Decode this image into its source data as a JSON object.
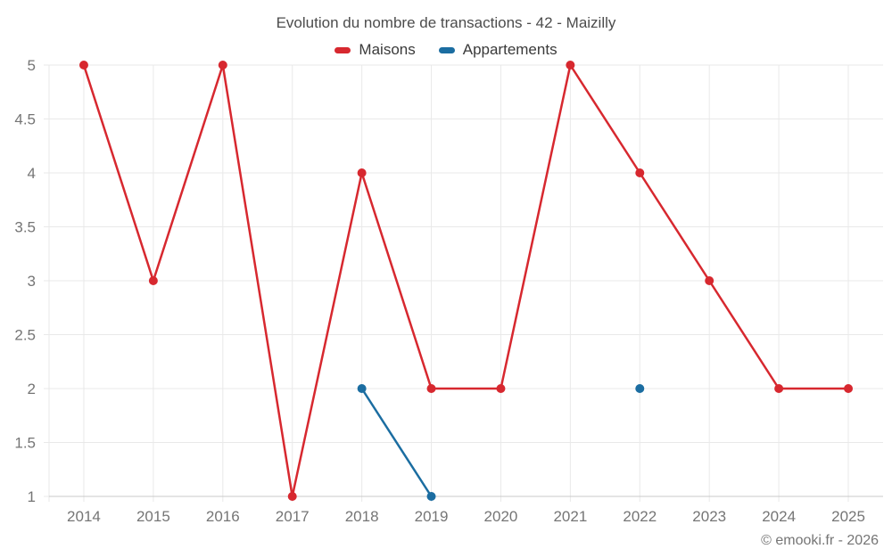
{
  "title": "Evolution du nombre de transactions - 42 - Maizilly",
  "copyright": "© emooki.fr - 2026",
  "colors": {
    "maisons": "#d7282f",
    "appartements": "#1b6da1",
    "grid": "#e9e9e9",
    "axis": "#c9c9c9",
    "tick_label": "#757575",
    "background": "#ffffff"
  },
  "chart_data": {
    "type": "line",
    "title": "Evolution du nombre de transactions - 42 - Maizilly",
    "categories": [
      "2014",
      "2015",
      "2016",
      "2017",
      "2018",
      "2019",
      "2020",
      "2021",
      "2022",
      "2023",
      "2024",
      "2025"
    ],
    "series": [
      {
        "name": "Maisons",
        "color": "#d7282f",
        "values": [
          5,
          3,
          5,
          1,
          4,
          2,
          2,
          5,
          4,
          3,
          2,
          2
        ]
      },
      {
        "name": "Appartements",
        "color": "#1b6da1",
        "values": [
          null,
          null,
          null,
          null,
          2,
          1,
          null,
          null,
          2,
          null,
          null,
          null
        ]
      }
    ],
    "xlabel": "",
    "ylabel": "",
    "ylim": [
      1,
      5
    ],
    "ytick_step": 0.5,
    "grid": true,
    "legend_position": "top"
  }
}
